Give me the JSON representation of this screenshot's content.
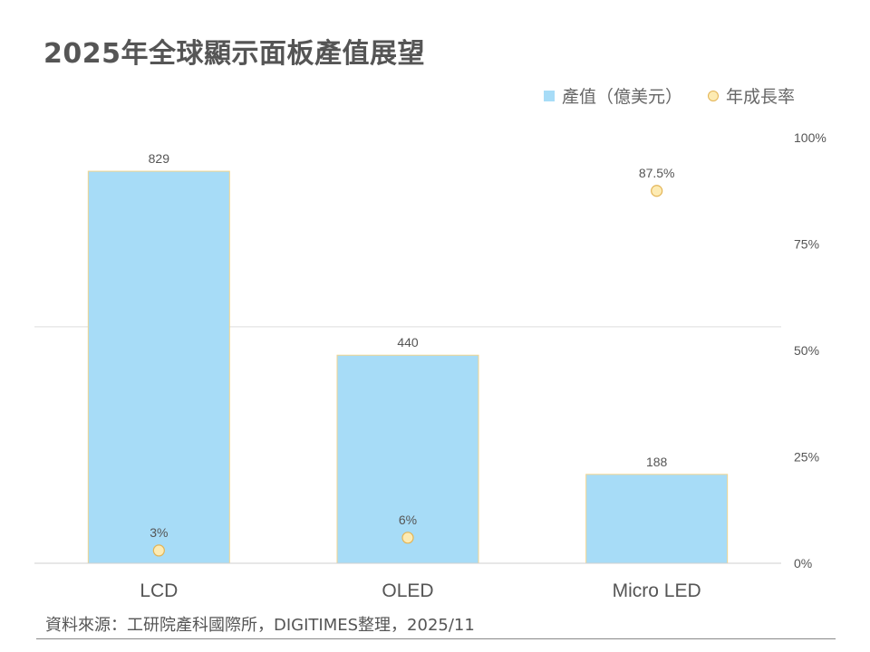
{
  "title": "2025年全球顯示面板產值展望",
  "legend": {
    "bar_label": "產值（億美元）",
    "dot_label": "年成長率"
  },
  "source": "資料來源：工研院產科國際所，DIGITIMES整理，2025/11",
  "chart_data": {
    "type": "bar",
    "title": "2025年全球顯示面板產值展望",
    "categories": [
      "LCD",
      "OLED",
      "Micro LED"
    ],
    "series": [
      {
        "name": "產值（億美元）",
        "type": "bar",
        "axis": "left",
        "values": [
          829,
          440,
          188
        ],
        "labels": [
          "829",
          "440",
          "188"
        ],
        "color": "#a7dcf7"
      },
      {
        "name": "年成長率",
        "type": "scatter",
        "axis": "right",
        "values": [
          3,
          6,
          87.5
        ],
        "labels": [
          "3%",
          "6%",
          "87.5%"
        ],
        "color": "#fdebb3"
      }
    ],
    "y_left_range": [
      0,
      1000
    ],
    "y_right_range": [
      0,
      100
    ],
    "y_right_ticks": [
      "0%",
      "25%",
      "50%",
      "75%",
      "100%"
    ],
    "y_right_tick_values": [
      0,
      25,
      50,
      75,
      100
    ],
    "gridline_values_left": [
      500
    ]
  }
}
